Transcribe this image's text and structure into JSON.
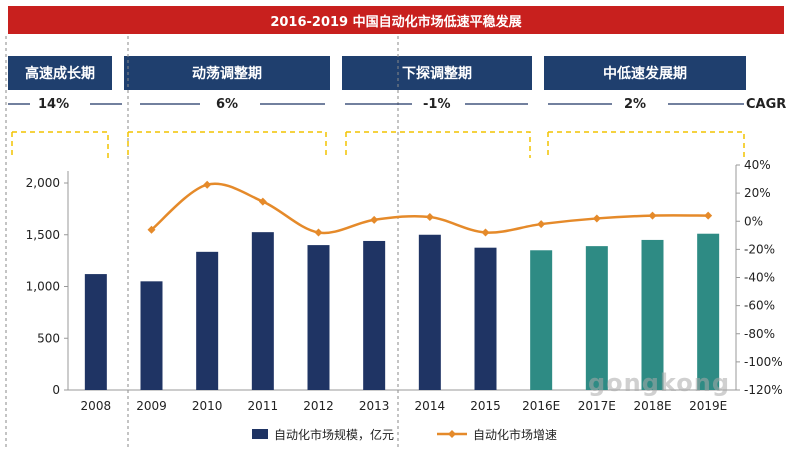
{
  "title": "2016-2019 中国自动化市场低速平稳发展",
  "phases": [
    {
      "label": "高速成长期",
      "rate": "14%"
    },
    {
      "label": "动荡调整期",
      "rate": "6%"
    },
    {
      "label": "下探调整期",
      "rate": "-1%"
    },
    {
      "label": "中低速发展期",
      "rate": "2%"
    }
  ],
  "cagr_label": "CAGR",
  "watermark": "gongkong",
  "colors": {
    "title_bg": "#c8201e",
    "phase_bg": "#1f3f6e",
    "bar_actual": "#1f3464",
    "bar_estimate": "#2e8b84",
    "line": "#e58a2a",
    "dashed_bracket": "#f2c300"
  },
  "chart_data": {
    "type": "bar+line",
    "categories": [
      "2008",
      "2009",
      "2010",
      "2011",
      "2012",
      "2013",
      "2014",
      "2015",
      "2016E",
      "2017E",
      "2018E",
      "2019E"
    ],
    "series": [
      {
        "name": "自动化市场规模，亿元",
        "type": "bar",
        "axis": "left",
        "values": [
          1120,
          1050,
          1335,
          1525,
          1400,
          1440,
          1500,
          1375,
          1350,
          1390,
          1450,
          1510
        ]
      },
      {
        "name": "自动化市场增速",
        "type": "line",
        "axis": "right",
        "values": [
          null,
          -6,
          26,
          14,
          -8,
          1,
          3,
          -8,
          -2,
          2,
          4,
          4
        ]
      }
    ],
    "y_left": {
      "min": 0,
      "max": 2000,
      "ticks": [
        "0",
        "500",
        "1,000",
        "1,500",
        "2,000"
      ]
    },
    "y_right": {
      "min": -120,
      "max": 40,
      "ticks": [
        "40%",
        "20%",
        "0%",
        "-20%",
        "-40%",
        "-60%",
        "-80%",
        "-100%",
        "-120%"
      ]
    },
    "legend": {
      "position": "bottom-center"
    }
  }
}
